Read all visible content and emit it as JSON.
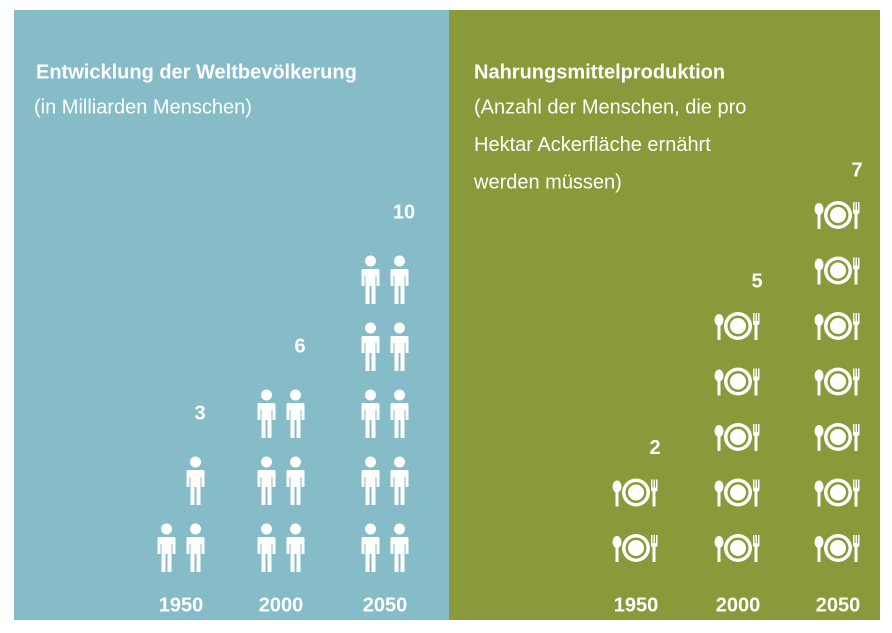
{
  "chart_data": [
    {
      "type": "pictograph",
      "title": "Entwicklung der Weltbevölkerung",
      "subtitle": [
        "(in Milliarden Menschen)"
      ],
      "categories": [
        "1950",
        "2000",
        "2050"
      ],
      "values": [
        3,
        6,
        10
      ],
      "color": "#86bcc8"
    },
    {
      "type": "pictograph",
      "title": "Nahrungsmittelproduktion",
      "subtitle": [
        "(Anzahl der Menschen, die pro",
        "Hektar Ackerfläche ernährt",
        "werden müssen)"
      ],
      "categories": [
        "1950",
        "2000",
        "2050"
      ],
      "values": [
        2,
        5,
        7
      ],
      "color": "#8a9a3a"
    }
  ]
}
